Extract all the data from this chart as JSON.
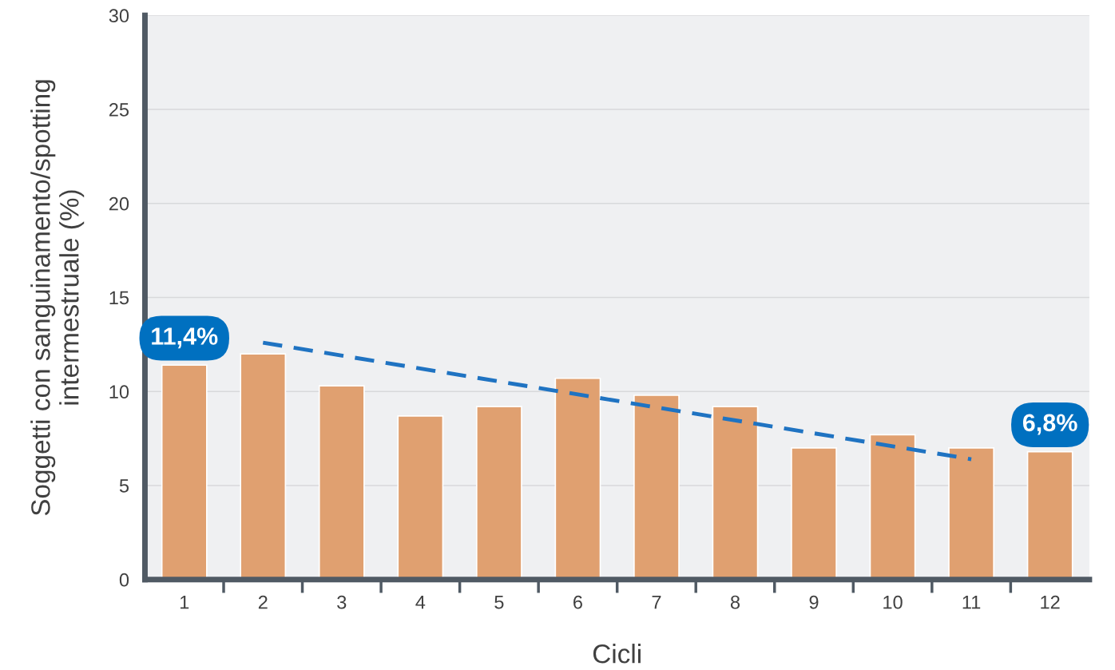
{
  "chart_data": {
    "type": "bar",
    "xlabel": "Cicli",
    "ylabel": "Soggetti con sanguinamento/spotting\nintermestruale (%)",
    "categories": [
      "1",
      "2",
      "3",
      "4",
      "5",
      "6",
      "7",
      "8",
      "9",
      "10",
      "11",
      "12"
    ],
    "series": [
      {
        "color": "#e0a070",
        "values": [
          11.4,
          12.0,
          10.3,
          8.7,
          9.2,
          10.7,
          9.8,
          9.2,
          7.0,
          7.7,
          7.0,
          6.8
        ],
        "value_labels": [
          "11,4%",
          null,
          null,
          null,
          null,
          null,
          null,
          null,
          null,
          null,
          null,
          "6,8%"
        ]
      },
      {
        "type": "line",
        "color": "#1f73c2",
        "x": [
          "2",
          "11"
        ],
        "values": [
          12.6,
          6.4
        ],
        "line_style": "dashed",
        "marker": "none"
      }
    ],
    "ylim": [
      0,
      30
    ],
    "yticks": [
      0,
      5,
      10,
      15,
      20,
      25,
      30
    ],
    "grid": "y",
    "legend": false
  }
}
